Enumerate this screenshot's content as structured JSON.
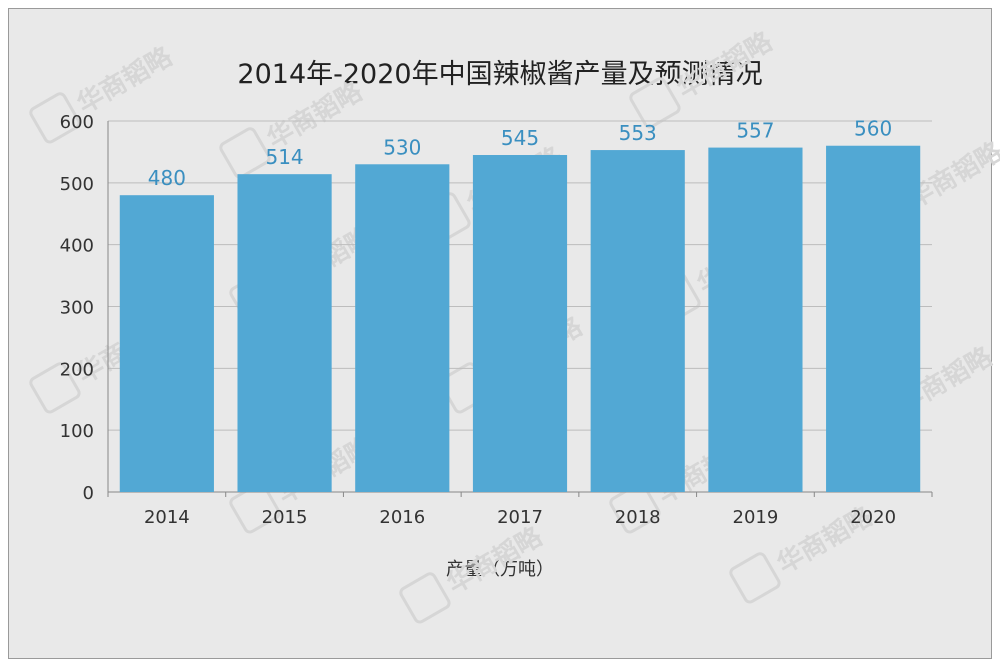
{
  "chart_data": {
    "type": "bar",
    "title": "2014年-2020年中国辣椒酱产量及预测情况",
    "xlabel": "产量（万吨）",
    "ylabel": "",
    "categories": [
      "2014",
      "2015",
      "2016",
      "2017",
      "2018",
      "2019",
      "2020"
    ],
    "values": [
      480,
      514,
      530,
      545,
      553,
      557,
      560
    ],
    "ylim": [
      0,
      600
    ],
    "yticks": [
      0,
      100,
      200,
      300,
      400,
      500,
      600
    ],
    "grid": true,
    "colors": {
      "bar": "#52a8d4",
      "value_label": "#3a8fc0",
      "grid": "#bdbdbd",
      "axis": "#888888",
      "tick_label": "#333333"
    }
  },
  "watermark": {
    "text": "华商韬略",
    "logo_chars": [
      "韬",
      "华",
      "略",
      "商"
    ]
  }
}
